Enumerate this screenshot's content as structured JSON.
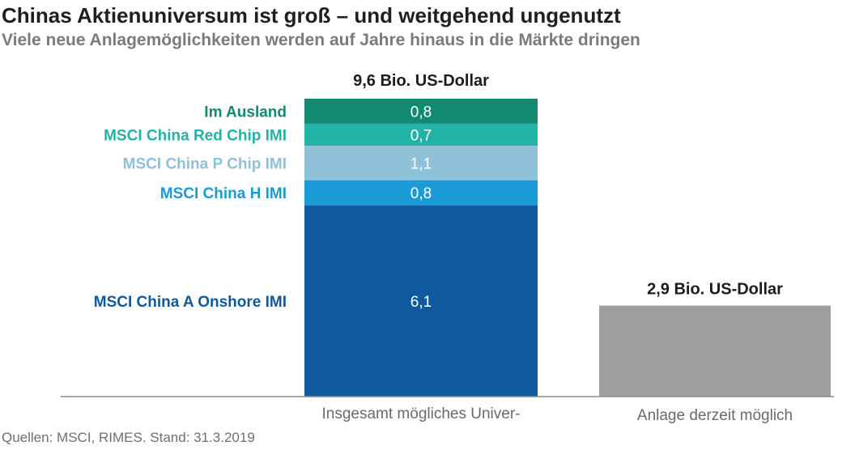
{
  "title": "Chinas Aktienuniversum ist groß – und weitgehend ungenutzt",
  "subtitle": "Viele neue Anlagemöglichkeiten werden auf Jahre hinaus in die Märkte dringen",
  "source": "Quellen: MSCI, RIMES. Stand: 31.3.2019",
  "chart_data": {
    "type": "bar",
    "stacked": true,
    "unit": "Bio. US-Dollar",
    "ylim": [
      0,
      9.6
    ],
    "categories": [
      "Insgesamt mögliches Univer-",
      "Anlage derzeit möglich"
    ],
    "totals": [
      9.6,
      2.9
    ],
    "total_labels": [
      "9,6 Bio. US-Dollar",
      "2,9 Bio. US-Dollar"
    ],
    "segments": [
      {
        "name": "MSCI China A Onshore IMI",
        "value": 6.1,
        "value_label": "6,1",
        "color": "#0f5a9e"
      },
      {
        "name": "MSCI China H IMI",
        "value": 0.8,
        "value_label": "0,8",
        "color": "#1a9ad7"
      },
      {
        "name": "MSCI China P Chip IMI",
        "value": 1.1,
        "value_label": "1,1",
        "color": "#8fc1d9"
      },
      {
        "name": "MSCI China Red Chip IMI",
        "value": 0.7,
        "value_label": "0,7",
        "color": "#22b3a6"
      },
      {
        "name": "Im Ausland",
        "value": 0.8,
        "value_label": "0,8",
        "color": "#128a72"
      }
    ],
    "second_bar_color": "#9e9e9e",
    "label_colors": [
      "#0f5a9e",
      "#1a9ad7",
      "#8fc1d9",
      "#22b3a6",
      "#128a72"
    ],
    "grid": false,
    "legend": "left"
  }
}
